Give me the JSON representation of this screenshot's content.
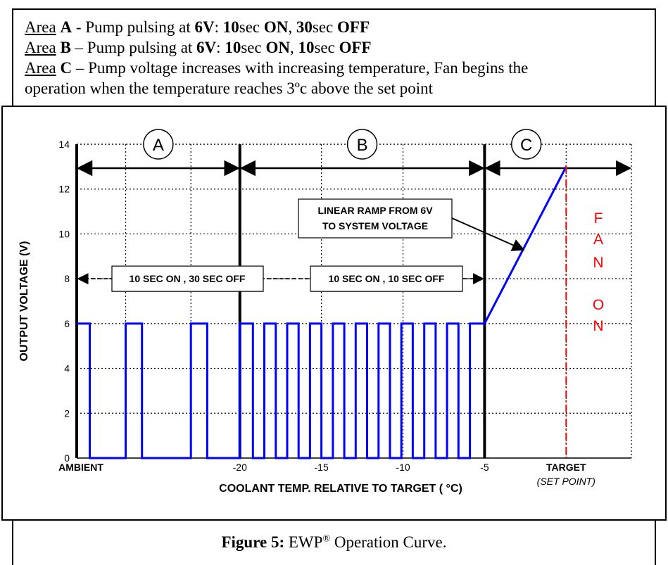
{
  "legend": {
    "lines": [
      {
        "area_word": "Area",
        "letter": "A",
        "sep": " - Pump pulsing at ",
        "volt": "6V",
        "after_volt": ": ",
        "on_num": "10",
        "on_unit": "sec ",
        "on_word": "ON",
        "comma": ", ",
        "off_num": "30",
        "off_unit": "sec ",
        "off_word": "OFF"
      },
      {
        "area_word": "Area",
        "letter": "B",
        "sep": " – Pump pulsing at ",
        "volt": "6V",
        "after_volt": ": ",
        "on_num": "10",
        "on_unit": "sec ",
        "on_word": "ON",
        "comma": ", ",
        "off_num": "10",
        "off_unit": "sec ",
        "off_word": "OFF"
      }
    ],
    "line_c": {
      "area_word": "Area",
      "letter": "C",
      "text1": " – Pump voltage increases with increasing temperature, Fan begins the",
      "text2": "operation when the temperature reaches 3ºc above the set point"
    }
  },
  "chart_data": {
    "type": "line",
    "ylabel": "OUTPUT VOLTAGE (V)",
    "xlabel": "COOLANT TEMP. RELATIVE TO TARGET ( °C)",
    "ylim": [
      0,
      14
    ],
    "y_ticks": [
      "0",
      "2",
      "4",
      "6",
      "8",
      "10",
      "12",
      "14"
    ],
    "x_tick_labels": [
      {
        "label": "AMBIENT",
        "x": -30,
        "bold": true
      },
      {
        "label": "-20",
        "x": -20
      },
      {
        "label": "-15",
        "x": -15
      },
      {
        "label": "-10",
        "x": -10
      },
      {
        "label": "-5",
        "x": -5
      },
      {
        "label": "TARGET",
        "x": 0,
        "bold": true
      }
    ],
    "set_point_label": "(SET POINT)",
    "xlim": [
      -30,
      4
    ],
    "grid": true,
    "regions": [
      {
        "label": "A",
        "x_start": -30,
        "x_end": -20
      },
      {
        "label": "B",
        "x_start": -20,
        "x_end": -5
      },
      {
        "label": "C",
        "x_start": -5,
        "x_end": 4
      }
    ],
    "annotations": {
      "a_text": "10 SEC ON , 30 SEC OFF",
      "b_text": "10 SEC ON , 10 SEC OFF",
      "ramp_line1": "LINEAR RAMP FROM 6V",
      "ramp_line2": "TO SYSTEM VOLTAGE",
      "fan_letters": [
        "F",
        "A",
        "N",
        "O",
        "N"
      ]
    },
    "series": [
      {
        "points": [
          [
            -30,
            6
          ],
          [
            -29.2,
            6
          ],
          [
            -29.2,
            0
          ],
          [
            -27,
            0
          ],
          [
            -27,
            6
          ],
          [
            -26,
            6
          ],
          [
            -26,
            0
          ],
          [
            -23,
            0
          ],
          [
            -23,
            6
          ],
          [
            -22,
            6
          ],
          [
            -22,
            0
          ],
          [
            -20,
            0
          ],
          [
            -20,
            6
          ],
          [
            -19.2,
            6
          ],
          [
            -19.2,
            0
          ],
          [
            -18.5,
            0
          ],
          [
            -18.5,
            6
          ],
          [
            -17.8,
            6
          ],
          [
            -17.8,
            0
          ],
          [
            -17.1,
            0
          ],
          [
            -17.1,
            6
          ],
          [
            -16.4,
            6
          ],
          [
            -16.4,
            0
          ],
          [
            -15.7,
            0
          ],
          [
            -15.7,
            6
          ],
          [
            -15,
            6
          ],
          [
            -15,
            0
          ],
          [
            -14.3,
            0
          ],
          [
            -14.3,
            6
          ],
          [
            -13.6,
            6
          ],
          [
            -13.6,
            0
          ],
          [
            -12.9,
            0
          ],
          [
            -12.9,
            6
          ],
          [
            -12.2,
            6
          ],
          [
            -12.2,
            0
          ],
          [
            -11.5,
            0
          ],
          [
            -11.5,
            6
          ],
          [
            -10.8,
            6
          ],
          [
            -10.8,
            0
          ],
          [
            -10.1,
            0
          ],
          [
            -10.1,
            6
          ],
          [
            -9.4,
            6
          ],
          [
            -9.4,
            0
          ],
          [
            -8.7,
            0
          ],
          [
            -8.7,
            6
          ],
          [
            -8,
            6
          ],
          [
            -8,
            0
          ],
          [
            -7.3,
            0
          ],
          [
            -7.3,
            6
          ],
          [
            -6.6,
            6
          ],
          [
            -6.6,
            0
          ],
          [
            -5.9,
            0
          ],
          [
            -5.9,
            6
          ],
          [
            -5,
            6
          ],
          [
            0,
            13
          ]
        ],
        "color": "#0000ff"
      }
    ],
    "fan_line_x": 0,
    "fan_color": "#ff0000"
  },
  "caption": {
    "label": "Figure 5:",
    "brand": " EWP",
    "reg": "®",
    "rest": " Operation Curve."
  }
}
